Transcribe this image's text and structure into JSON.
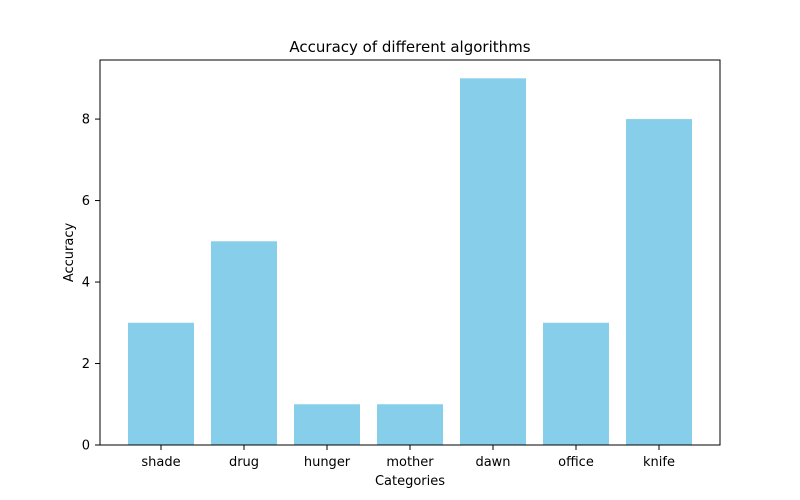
{
  "chart_data": {
    "type": "bar",
    "title": "Accuracy of different algorithms",
    "xlabel": "Categories",
    "ylabel": "Accuracy",
    "categories": [
      "shade",
      "drug",
      "hunger",
      "mother",
      "dawn",
      "office",
      "knife"
    ],
    "values": [
      3,
      5,
      1,
      1,
      9,
      3,
      8
    ],
    "ylim": [
      0,
      9.45
    ],
    "yticks": [
      0,
      2,
      4,
      6,
      8
    ],
    "grid": false,
    "legend": "none",
    "bar_color": "#87CEEB"
  }
}
